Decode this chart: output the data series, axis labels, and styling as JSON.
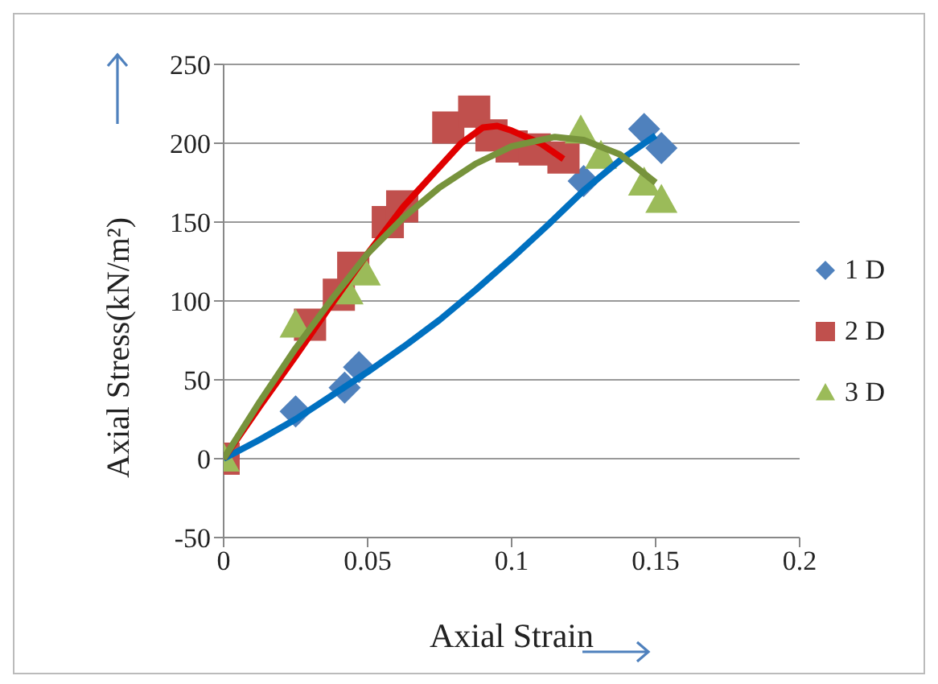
{
  "chart_data": {
    "type": "scatter",
    "xlabel": "Axial Strain",
    "ylabel": "Axial Stress(kN/m²)",
    "xlim": [
      0,
      0.2
    ],
    "xticks": [
      0,
      0.05,
      0.1,
      0.15,
      0.2
    ],
    "ylim": [
      -50,
      250
    ],
    "yticks": [
      -50,
      0,
      50,
      100,
      150,
      200,
      250
    ],
    "grid": "y",
    "legend": "right",
    "series": [
      {
        "name": "1 D",
        "color": "#4f81bd",
        "marker": "diamond",
        "x": [
          0.025,
          0.042,
          0.047,
          0.125,
          0.146,
          0.152
        ],
        "values": [
          30,
          45,
          58,
          176,
          209,
          197
        ]
      },
      {
        "name": "2 D",
        "color": "#c0504d",
        "marker": "square",
        "x": [
          0,
          0.03,
          0.04,
          0.045,
          0.057,
          0.062,
          0.078,
          0.087,
          0.093,
          0.1,
          0.108,
          0.118
        ],
        "values": [
          0,
          85,
          104,
          121,
          150,
          160,
          210,
          220,
          205,
          198,
          196,
          191
        ]
      },
      {
        "name": "3 D",
        "color": "#9bbb59",
        "marker": "triangle",
        "x": [
          0,
          0.025,
          0.043,
          0.049,
          0.124,
          0.131,
          0.146,
          0.152
        ],
        "values": [
          0,
          85,
          106,
          118,
          208,
          192,
          175,
          164
        ]
      },
      {
        "type": "line",
        "color": "#0070c0",
        "marker": "none",
        "x": [
          0,
          0.0125,
          0.025,
          0.0375,
          0.05,
          0.0625,
          0.075,
          0.0875,
          0.1,
          0.1125,
          0.125,
          0.1375,
          0.15
        ],
        "values": [
          0,
          12,
          25,
          40,
          55,
          71,
          88,
          107,
          127,
          148,
          170,
          189,
          205
        ]
      },
      {
        "type": "line",
        "color": "#e00000",
        "marker": "none",
        "x": [
          0,
          0.0125,
          0.025,
          0.0375,
          0.05,
          0.0625,
          0.075,
          0.0825,
          0.09,
          0.095,
          0.1,
          0.11,
          0.118
        ],
        "values": [
          0,
          33,
          65,
          98,
          130,
          160,
          185,
          200,
          210,
          211,
          208,
          200,
          190
        ]
      },
      {
        "type": "line",
        "color": "#77933c",
        "marker": "none",
        "x": [
          0,
          0.0125,
          0.025,
          0.0375,
          0.05,
          0.0625,
          0.075,
          0.0875,
          0.1,
          0.115,
          0.125,
          0.1375,
          0.15
        ],
        "values": [
          0,
          36,
          70,
          101,
          130,
          153,
          172,
          187,
          198,
          204,
          202,
          193,
          175
        ]
      }
    ]
  }
}
